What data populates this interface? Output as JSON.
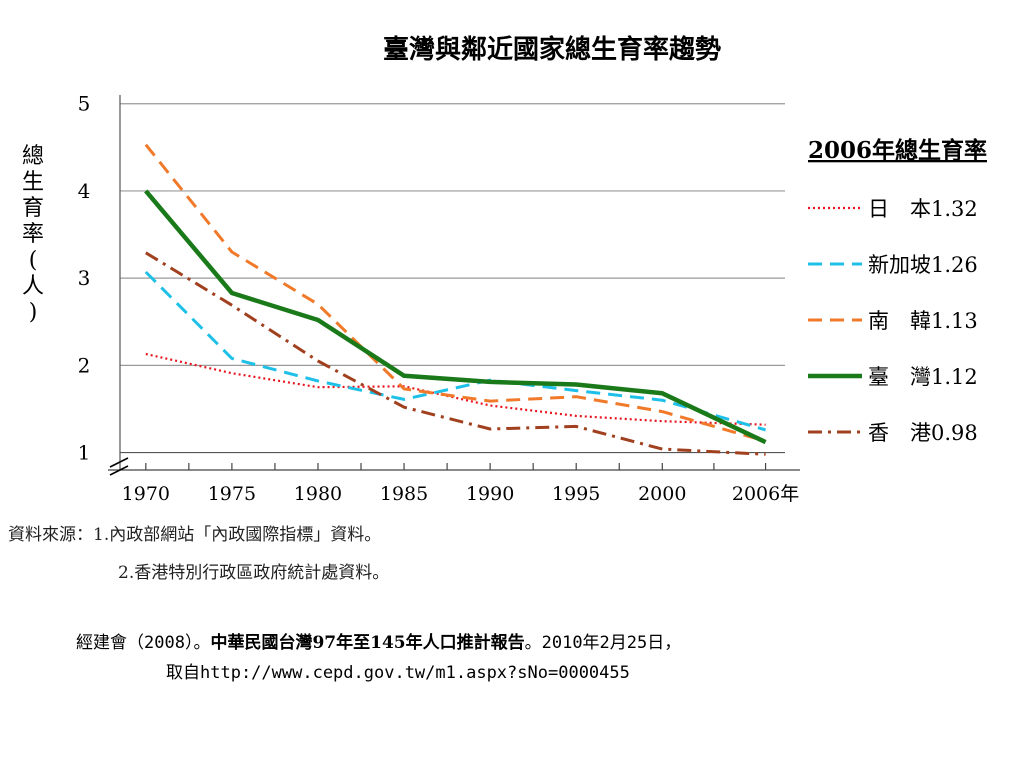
{
  "chart_data": {
    "type": "line",
    "title": "臺灣與鄰近國家總生育率趨勢",
    "ylabel_chars": [
      "總",
      "生",
      "育",
      "率",
      "(",
      "人",
      ")"
    ],
    "x_tick_labels": [
      "1970",
      "1975",
      "1980",
      "1985",
      "1990",
      "1995",
      "2000",
      "2006年"
    ],
    "x_ticks": [
      1970,
      1975,
      1980,
      1985,
      1990,
      1995,
      2000,
      2006
    ],
    "xlim": [
      1968.5,
      2008
    ],
    "y_tick_labels": [
      "1",
      "2",
      "3",
      "4",
      "5"
    ],
    "y_ticks": [
      1,
      2,
      3,
      4,
      5
    ],
    "ylim": [
      0.8,
      5.1
    ],
    "grid": "horizontal",
    "legend_title": "2006年總生育率",
    "legend_position": "right",
    "series": [
      {
        "name": "日　本1.32",
        "color": "#e8141e",
        "style": "dotted",
        "x": [
          1970,
          1975,
          1980,
          1985,
          1990,
          1995,
          2000,
          2006
        ],
        "y": [
          2.13,
          1.91,
          1.75,
          1.76,
          1.54,
          1.42,
          1.36,
          1.32
        ]
      },
      {
        "name": "新加坡1.26",
        "color": "#1ec0e8",
        "style": "dashed",
        "x": [
          1970,
          1975,
          1980,
          1985,
          1990,
          1995,
          2000,
          2006
        ],
        "y": [
          3.07,
          2.08,
          1.82,
          1.61,
          1.83,
          1.71,
          1.6,
          1.26
        ]
      },
      {
        "name": "南　韓1.13",
        "color": "#f07a2a",
        "style": "dashed",
        "x": [
          1970,
          1975,
          1980,
          1985,
          1990,
          1995,
          2000,
          2006
        ],
        "y": [
          4.53,
          3.3,
          2.7,
          1.73,
          1.59,
          1.64,
          1.47,
          1.13
        ]
      },
      {
        "name": "臺　灣1.12",
        "color": "#1a7a1a",
        "style": "solid",
        "x": [
          1970,
          1975,
          1980,
          1985,
          1990,
          1995,
          2000,
          2006
        ],
        "y": [
          4.0,
          2.83,
          2.52,
          1.88,
          1.81,
          1.78,
          1.68,
          1.12
        ]
      },
      {
        "name": "香　港0.98",
        "color": "#a0401e",
        "style": "dashdot",
        "x": [
          1970,
          1975,
          1980,
          1985,
          1990,
          1995,
          2000,
          2006
        ],
        "y": [
          3.29,
          2.69,
          2.05,
          1.52,
          1.27,
          1.3,
          1.04,
          0.98
        ]
      }
    ]
  },
  "source": {
    "line1": "資料來源：1.內政部網站「內政國際指標」資料。",
    "line2": "2.香港特別行政區政府統計處資料。"
  },
  "citation": {
    "prefix": "經建會（2008）。",
    "bold_title": "中華民國台灣97年至145年人口推計報告",
    "suffix": "。2010年2月25日，",
    "line2": "取自http://www.cepd.gov.tw/m1.aspx?sNo=0000455"
  }
}
